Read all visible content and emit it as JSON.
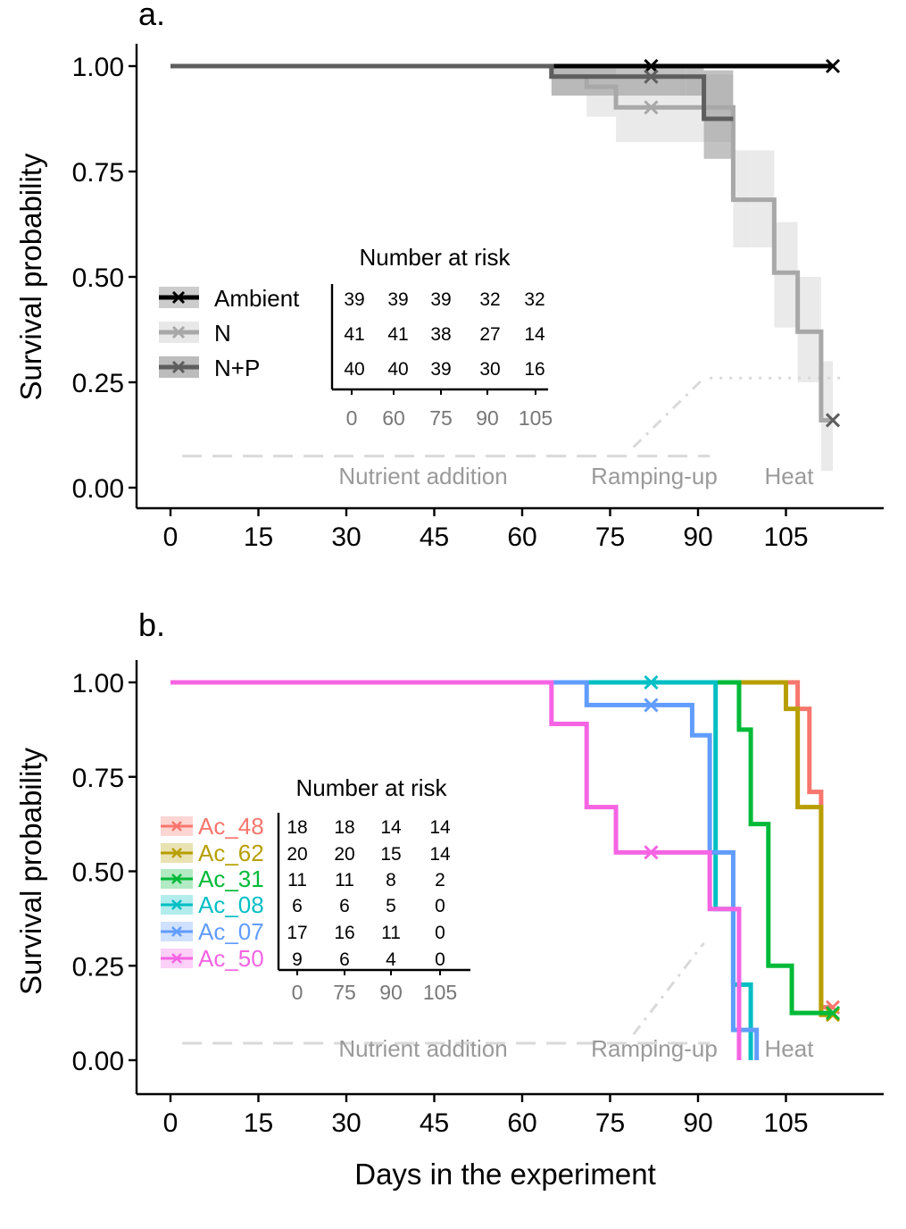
{
  "chart_data": [
    {
      "type": "line",
      "panel": "a.",
      "ylabel": "Survival probability",
      "xlabel": "",
      "ylim": [
        0,
        1
      ],
      "yticks": [
        "0.00",
        "0.25",
        "0.50",
        "0.75",
        "1.00"
      ],
      "xticks": [
        "0",
        "15",
        "30",
        "45",
        "60",
        "75",
        "90",
        "105"
      ],
      "xlim": [
        -3,
        120
      ],
      "series": [
        {
          "name": "Ambient",
          "color": "#000000",
          "band": "#aaaaaa",
          "steps": [
            [
              0,
              1.0
            ],
            [
              113,
              1.0
            ]
          ],
          "censors": [
            [
              82,
              1.0
            ],
            [
              113,
              1.0
            ]
          ],
          "ci": []
        },
        {
          "name": "N",
          "color": "#a8a8a8",
          "band": "#d9d9d9",
          "steps": [
            [
              0,
              1.0
            ],
            [
              65,
              0.976
            ],
            [
              71,
              0.951
            ],
            [
              76,
              0.902
            ],
            [
              82,
              0.902
            ],
            [
              92,
              0.902
            ],
            [
              96,
              0.683
            ],
            [
              99,
              0.683
            ],
            [
              103,
              0.51
            ],
            [
              107,
              0.37
            ],
            [
              111,
              0.16
            ],
            [
              113,
              0.16
            ]
          ],
          "censors": [
            [
              82,
              0.902
            ],
            [
              113,
              0.16
            ]
          ],
          "ci": [
            [
              65,
              0.93,
              1.0
            ],
            [
              71,
              0.88,
              1.0
            ],
            [
              76,
              0.82,
              0.98
            ],
            [
              92,
              0.82,
              0.98
            ],
            [
              96,
              0.57,
              0.8
            ],
            [
              99,
              0.57,
              0.8
            ],
            [
              103,
              0.38,
              0.63
            ],
            [
              107,
              0.25,
              0.5
            ],
            [
              111,
              0.04,
              0.3
            ],
            [
              113,
              0.04,
              0.3
            ]
          ]
        },
        {
          "name": "N+P",
          "color": "#5e5e5e",
          "band": "#8f8f8f",
          "steps": [
            [
              0,
              1.0
            ],
            [
              65,
              0.975
            ],
            [
              88,
              0.975
            ],
            [
              88,
              0.975
            ],
            [
              91,
              0.875
            ],
            [
              96,
              0.875
            ],
            [
              96,
              0.875
            ],
            [
              96,
              0.875
            ],
            [
              96,
              0.875
            ],
            [
              96,
              0.875
            ],
            [
              96,
              0.875
            ],
            [
              96,
              0.875
            ],
            [
              96,
              0.875
            ],
            [
              96,
              0.875
            ],
            [
              96,
              0.875
            ],
            [
              96,
              0.875
            ],
            [
              96,
              0.875
            ],
            [
              96,
              0.875
            ],
            [
              96,
              0.875
            ],
            [
              96,
              0.875
            ],
            [
              96,
              0.875
            ]
          ],
          "censors": [
            [
              82,
              0.975
            ],
            [
              113,
              0.16
            ]
          ],
          "ci": [
            [
              65,
              0.93,
              1.0
            ],
            [
              88,
              0.93,
              1.0
            ],
            [
              91,
              0.78,
              0.99
            ],
            [
              96,
              0.78,
              0.99
            ]
          ]
        }
      ],
      "risk_table": {
        "title": "Number at risk",
        "x": [
          "0",
          "60",
          "75",
          "90",
          "105"
        ],
        "rows": [
          {
            "name": "Ambient",
            "values": [
              "39",
              "39",
              "39",
              "32",
              "32"
            ]
          },
          {
            "name": "N",
            "values": [
              "41",
              "41",
              "38",
              "27",
              "14"
            ]
          },
          {
            "name": "N+P",
            "values": [
              "40",
              "40",
              "39",
              "30",
              "16"
            ]
          }
        ]
      },
      "phases": [
        "Nutrient addition",
        "Ramping-up",
        "Heat"
      ],
      "legend": "left"
    },
    {
      "type": "line",
      "panel": "b.",
      "ylabel": "Survival probability",
      "xlabel": "Days in the experiment",
      "ylim": [
        0,
        1
      ],
      "yticks": [
        "0.00",
        "0.25",
        "0.50",
        "0.75",
        "1.00"
      ],
      "xticks": [
        "0",
        "15",
        "30",
        "45",
        "60",
        "75",
        "90",
        "105"
      ],
      "xlim": [
        -6,
        121
      ],
      "series": [
        {
          "name": "Ac_48",
          "color": "#f8766d",
          "steps": [
            [
              0,
              1.0
            ],
            [
              106,
              1.0
            ],
            [
              107,
              0.93
            ],
            [
              109,
              0.71
            ],
            [
              111,
              0.14
            ],
            [
              113,
              0.14
            ]
          ],
          "censors": [
            [
              113,
              0.14
            ]
          ]
        },
        {
          "name": "Ac_62",
          "color": "#b79f00",
          "steps": [
            [
              0,
              1.0
            ],
            [
              104,
              1.0
            ],
            [
              105,
              0.93
            ],
            [
              107,
              0.67
            ],
            [
              111,
              0.12
            ],
            [
              113,
              0.12
            ]
          ],
          "censors": [
            [
              113,
              0.12
            ]
          ]
        },
        {
          "name": "Ac_31",
          "color": "#00ba38",
          "steps": [
            [
              0,
              1.0
            ],
            [
              96,
              1.0
            ],
            [
              97,
              0.875
            ],
            [
              99,
              0.625
            ],
            [
              102,
              0.25
            ],
            [
              104,
              0.25
            ],
            [
              106,
              0.125
            ],
            [
              113,
              0.125
            ]
          ],
          "censors": [
            [
              113,
              0.125
            ]
          ]
        },
        {
          "name": "Ac_08",
          "color": "#00bfc4",
          "steps": [
            [
              0,
              1.0
            ],
            [
              92,
              1.0
            ],
            [
              93,
              0.4
            ],
            [
              96,
              0.2
            ],
            [
              99,
              0.0
            ]
          ],
          "censors": [
            [
              82,
              1.0
            ]
          ]
        },
        {
          "name": "Ac_07",
          "color": "#619cff",
          "steps": [
            [
              0,
              1.0
            ],
            [
              71,
              1.0
            ],
            [
              71,
              0.94
            ],
            [
              88,
              0.94
            ],
            [
              89,
              0.86
            ],
            [
              91,
              0.86
            ],
            [
              92,
              0.55
            ],
            [
              96,
              0.08
            ],
            [
              100,
              0.0
            ]
          ],
          "censors": [
            [
              82,
              0.94
            ]
          ]
        },
        {
          "name": "Ac_50",
          "color": "#f564e3",
          "steps": [
            [
              0,
              1.0
            ],
            [
              65,
              1.0
            ],
            [
              65,
              0.89
            ],
            [
              71,
              0.89
            ],
            [
              71,
              0.67
            ],
            [
              76,
              0.67
            ],
            [
              76,
              0.55
            ],
            [
              92,
              0.55
            ],
            [
              92,
              0.4
            ],
            [
              97,
              0.0
            ]
          ],
          "censors": [
            [
              82,
              0.55
            ]
          ]
        }
      ],
      "risk_table": {
        "title": "Number at risk",
        "x": [
          "0",
          "75",
          "90",
          "105"
        ],
        "rows": [
          {
            "name": "Ac_48",
            "values": [
              "18",
              "18",
              "14",
              "14"
            ]
          },
          {
            "name": "Ac_62",
            "values": [
              "20",
              "20",
              "15",
              "14"
            ]
          },
          {
            "name": "Ac_31",
            "values": [
              "11",
              "11",
              "8",
              "2"
            ]
          },
          {
            "name": "Ac_08",
            "values": [
              "6",
              "6",
              "5",
              "0"
            ]
          },
          {
            "name": "Ac_07",
            "values": [
              "17",
              "16",
              "11",
              "0"
            ]
          },
          {
            "name": "Ac_50",
            "values": [
              "9",
              "6",
              "4",
              "0"
            ]
          }
        ]
      },
      "phases": [
        "Nutrient addition",
        "Ramping-up",
        "Heat"
      ],
      "legend": "left"
    }
  ]
}
